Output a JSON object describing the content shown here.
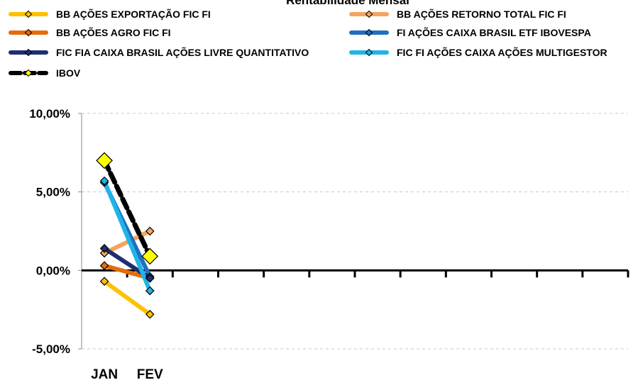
{
  "chart_data": {
    "type": "line",
    "title": "Rentabilidade Mensal",
    "xlabel": "",
    "ylabel": "",
    "categories": [
      "JAN",
      "FEV"
    ],
    "category_slots": 12,
    "ylim": [
      -5,
      10
    ],
    "yticks": [
      -5,
      0,
      5,
      10
    ],
    "ytick_labels": [
      "-5,00%",
      "0,00%",
      "5,00%",
      "10,00%"
    ],
    "grid": true,
    "legend_position": "top",
    "series": [
      {
        "name": "BB AÇÕES EXPORTAÇÃO FIC FI",
        "color": "#FFC000",
        "marker_color": "#FFC000",
        "values": [
          -0.7,
          -2.8
        ]
      },
      {
        "name": "BB AÇÕES RETORNO TOTAL FIC FI",
        "color": "#F4A460",
        "marker_color": "#F4A460",
        "values": [
          1.1,
          2.5
        ]
      },
      {
        "name": "BB AÇÕES AGRO FIC FI",
        "color": "#E46C0A",
        "marker_color": "#E46C0A",
        "values": [
          0.3,
          -0.5
        ]
      },
      {
        "name": "FI AÇÕES CAIXA BRASIL ETF IBOVESPA",
        "color": "#1F6FBF",
        "marker_color": "#1F6FBF",
        "values": [
          5.6,
          -0.4
        ]
      },
      {
        "name": "FIC FIA CAIXA BRASIL AÇÕES LIVRE QUANTITATIVO",
        "color": "#1F2E6E",
        "marker_color": "#1F2E6E",
        "values": [
          1.4,
          -0.5
        ]
      },
      {
        "name": "FIC FI AÇÕES CAIXA AÇÕES MULTIGESTOR",
        "color": "#1FB4E8",
        "marker_color": "#1FB4E8",
        "values": [
          5.7,
          -1.3
        ]
      },
      {
        "name": "IBOV",
        "color": "#000000",
        "marker_color": "#FFFF00",
        "big_marker": true,
        "values": [
          7.0,
          0.9
        ]
      }
    ]
  }
}
